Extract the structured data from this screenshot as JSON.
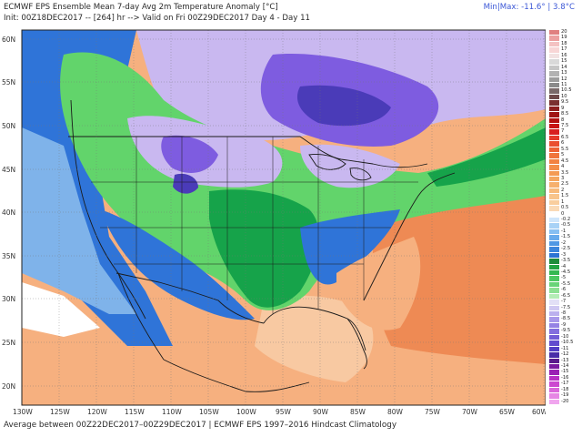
{
  "header": {
    "title": "ECMWF EPS Ensemble Mean 7-day Avg 2m Temperature Anomaly [°C]",
    "init": "Init: 00Z18DEC2017 -- [264] hr --> Valid on Fri 00Z29DEC2017  Day 4 - Day 11",
    "minmax": "Min|Max: -11.6° | 3.8°C"
  },
  "footer": "Average between 00Z22DEC2017–00Z29DEC2017 | ECMWF EPS 1997–2016 Hindcast Climatology",
  "map": {
    "lat_ticks": [
      "60N",
      "55N",
      "50N",
      "45N",
      "40N",
      "35N",
      "30N",
      "25N",
      "20N"
    ],
    "lon_ticks": [
      "130W",
      "125W",
      "120W",
      "115W",
      "110W",
      "105W",
      "100W",
      "95W",
      "90W",
      "85W",
      "80W",
      "75W",
      "70W",
      "65W",
      "60W"
    ],
    "colors": {
      "ocean_warm": "#f6b07f",
      "warm_light": "#f8c9a2",
      "warm_strong": "#ee8a54",
      "near_zero": "#ffffff",
      "cool_light": "#7fb3ea",
      "cool_blue": "#2f74d8",
      "green_dark": "#16a34a",
      "green_light": "#62d46b",
      "lavender": "#c9b8f0",
      "purple": "#7e5ce0",
      "deep_purple": "#4a3bb8",
      "boundary": "#1a1a1a"
    }
  },
  "scale": [
    {
      "label": "20",
      "color": "#e08080"
    },
    {
      "label": "19",
      "color": "#eca0a0"
    },
    {
      "label": "18",
      "color": "#f4c2c2"
    },
    {
      "label": "17",
      "color": "#f8d6d6"
    },
    {
      "label": "16",
      "color": "#f2e2e2"
    },
    {
      "label": "15",
      "color": "#d9d9d9"
    },
    {
      "label": "14",
      "color": "#c6c6c6"
    },
    {
      "label": "13",
      "color": "#b2b2b2"
    },
    {
      "label": "12",
      "color": "#9d9d9d"
    },
    {
      "label": "11",
      "color": "#8a8a8a"
    },
    {
      "label": "10.5",
      "color": "#7a6a6a"
    },
    {
      "label": "10",
      "color": "#6e4a4a"
    },
    {
      "label": "9.5",
      "color": "#7a3030"
    },
    {
      "label": "9",
      "color": "#8c1e1e"
    },
    {
      "label": "8.5",
      "color": "#a01414"
    },
    {
      "label": "8",
      "color": "#b41010"
    },
    {
      "label": "7.5",
      "color": "#c81414"
    },
    {
      "label": "7",
      "color": "#d82020"
    },
    {
      "label": "6.5",
      "color": "#e43a2a"
    },
    {
      "label": "6",
      "color": "#ea4e30"
    },
    {
      "label": "5.5",
      "color": "#ee6236"
    },
    {
      "label": "5",
      "color": "#f0743c"
    },
    {
      "label": "4.5",
      "color": "#f28242"
    },
    {
      "label": "4",
      "color": "#f38e4a"
    },
    {
      "label": "3.5",
      "color": "#f49a54"
    },
    {
      "label": "3",
      "color": "#f5a660"
    },
    {
      "label": "2.5",
      "color": "#f6b06e"
    },
    {
      "label": "2",
      "color": "#f7ba7c"
    },
    {
      "label": "1.5",
      "color": "#f8c48c"
    },
    {
      "label": "1",
      "color": "#f9ce9e"
    },
    {
      "label": "0.5",
      "color": "#fadab6"
    },
    {
      "label": "0",
      "color": "#ffffff"
    },
    {
      "label": "-0.2",
      "color": "#cfe6fb"
    },
    {
      "label": "-0.5",
      "color": "#a8d2f6"
    },
    {
      "label": "-1",
      "color": "#86bff2"
    },
    {
      "label": "-1.5",
      "color": "#68abec"
    },
    {
      "label": "-2",
      "color": "#4f98e4"
    },
    {
      "label": "-2.5",
      "color": "#3c86dc"
    },
    {
      "label": "-3",
      "color": "#2c74d4"
    },
    {
      "label": "-3.5",
      "color": "#1e8c3a"
    },
    {
      "label": "-4",
      "color": "#22a442"
    },
    {
      "label": "-4.5",
      "color": "#34b852"
    },
    {
      "label": "-5",
      "color": "#4cc862"
    },
    {
      "label": "-5.5",
      "color": "#68d478"
    },
    {
      "label": "-6",
      "color": "#8ce092"
    },
    {
      "label": "-6.5",
      "color": "#b4ecb6"
    },
    {
      "label": "-7",
      "color": "#e2e0f6"
    },
    {
      "label": "-7.5",
      "color": "#cfc8f2"
    },
    {
      "label": "-8",
      "color": "#bbb0ee"
    },
    {
      "label": "-8.5",
      "color": "#a898ea"
    },
    {
      "label": "-9",
      "color": "#9582e4"
    },
    {
      "label": "-9.5",
      "color": "#836ede"
    },
    {
      "label": "-10",
      "color": "#725cd6"
    },
    {
      "label": "-10.5",
      "color": "#624cce"
    },
    {
      "label": "-11",
      "color": "#533ec4"
    },
    {
      "label": "-12",
      "color": "#4a2ea8"
    },
    {
      "label": "-13",
      "color": "#5a1a8c"
    },
    {
      "label": "-14",
      "color": "#7a1aa0"
    },
    {
      "label": "-15",
      "color": "#9a20b4"
    },
    {
      "label": "-16",
      "color": "#b830c4"
    },
    {
      "label": "-17",
      "color": "#cc48d0"
    },
    {
      "label": "-18",
      "color": "#da66da"
    },
    {
      "label": "-19",
      "color": "#e686e4"
    },
    {
      "label": "-20",
      "color": "#f0a6ee"
    }
  ]
}
